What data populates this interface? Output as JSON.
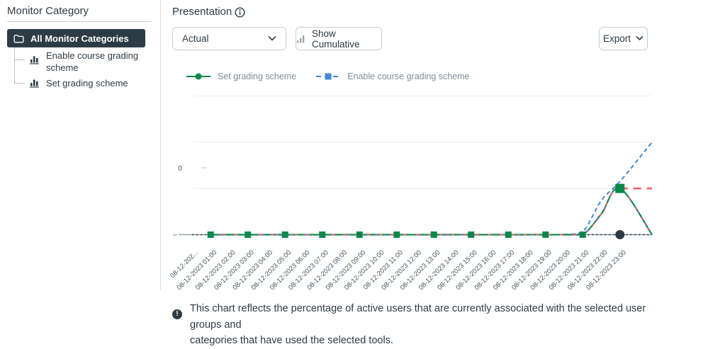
{
  "sidebar": {
    "title": "Monitor Category",
    "selected": {
      "label": "All Monitor Categories"
    },
    "items": [
      {
        "label": "Enable course grading scheme"
      },
      {
        "label": "Set grading scheme"
      }
    ]
  },
  "toolbar": {
    "title": "Presentation",
    "presentation_select": {
      "value": "Actual"
    },
    "cumulative_button": "Show Cumulative",
    "export_button": "Export"
  },
  "legend": [
    {
      "label": "Set grading scheme",
      "color": "#0E874B",
      "marker": "circle",
      "line": "solid"
    },
    {
      "label": "Enable course grading scheme",
      "color": "#4189D0",
      "marker": "square",
      "line": "dashed"
    }
  ],
  "colors": {
    "ink": "#2D3B45",
    "border": "#C7CDD1",
    "green": "#0E874B",
    "blue": "#4189D0",
    "red": "#F4605F",
    "magenta": "#A85CC0",
    "dark_dot": "#2B3A47",
    "grid": "#ECEDEE",
    "axis": "#98A2AA",
    "x_label_text": "#46535E",
    "legend_text": "#7E8D9B"
  },
  "chart_data": {
    "type": "line",
    "y_axis_label": "0",
    "ylim": [
      0,
      3.2
    ],
    "gridline_values": [
      1,
      2,
      3
    ],
    "x_labels": [
      "08-12-202...",
      "08-12-2023 01:00",
      "08-12-2023 02:00",
      "08-12-2023 03:00",
      "08-12-2023 04:00",
      "08-12-2023 05:00",
      "08-12-2023 06:00",
      "08-12-2023 07:00",
      "08-12-2023 08:00",
      "08-12-2023 09:00",
      "08-12-2023 10:00",
      "08-12-2023 11:00",
      "08-12-2023 12:00",
      "08-12-2023 13:00",
      "08-12-2023 14:00",
      "08-12-2023 15:00",
      "08-12-2023 16:00",
      "08-12-2023 17:00",
      "08-12-2023 18:00",
      "08-12-2023 19:00",
      "08-12-2023 20:00",
      "08-12-2023 21:00",
      "08-12-2023 22:00",
      "08-12-2023 23:00"
    ],
    "series": [
      {
        "id": "zero-baseline-dark",
        "name": "baseline zero line",
        "color": "#2B3A47",
        "width": 1.4,
        "dash": "2.5 3.5",
        "values": [
          0,
          0,
          0,
          0,
          0,
          0,
          0,
          0,
          0,
          0,
          0,
          0,
          0,
          0,
          0,
          0,
          0,
          0,
          0,
          0,
          0,
          0,
          0,
          0
        ],
        "edge_value": 0,
        "marker_shape": "circle",
        "marker_color": "#2B3A47",
        "markers": [
          {
            "index": 23,
            "size": 13
          }
        ]
      },
      {
        "id": "enable-course-grading-scheme",
        "name": "Enable course grading scheme",
        "color": "#4189D0",
        "width": 2,
        "dash": "6 4",
        "values": [
          null,
          null,
          null,
          null,
          null,
          null,
          null,
          null,
          null,
          null,
          null,
          null,
          null,
          null,
          null,
          null,
          null,
          null,
          null,
          null,
          0,
          0.06,
          0.74,
          1.15
        ],
        "edge_value": 2
      },
      {
        "id": "set-grading-scheme",
        "name": "Set grading scheme",
        "color": "#0E874B",
        "width": 2.2,
        "values": [
          null,
          0,
          0,
          0,
          0,
          0,
          0,
          0,
          0,
          0,
          0,
          0,
          0,
          0,
          0,
          0,
          0,
          0,
          0,
          0,
          0,
          0,
          0.45,
          1
        ],
        "edge_value": 0,
        "marker_shape": "square",
        "marker_color": "#0E874B",
        "markers": [
          {
            "index": 1,
            "size": 9
          },
          {
            "index": 3,
            "size": 9
          },
          {
            "index": 5,
            "size": 9
          },
          {
            "index": 7,
            "size": 9
          },
          {
            "index": 9,
            "size": 9
          },
          {
            "index": 11,
            "size": 9
          },
          {
            "index": 13,
            "size": 9
          },
          {
            "index": 15,
            "size": 9
          },
          {
            "index": 17,
            "size": 9
          },
          {
            "index": 19,
            "size": 9
          },
          {
            "index": 21,
            "size": 9
          },
          {
            "index": 23,
            "size": 13
          }
        ]
      },
      {
        "id": "set-grading-overlay-magenta",
        "name": "overlapping series (magenta dashed)",
        "color": "#A85CC0",
        "width": 1.7,
        "dash": "4 16",
        "dash_offset": 8,
        "values": [
          null,
          0,
          0,
          0,
          0,
          0,
          0,
          0,
          0,
          0,
          0,
          0,
          0,
          0,
          0,
          0,
          0,
          0,
          0,
          0,
          0,
          0,
          0.45,
          1
        ],
        "edge_value": 0
      },
      {
        "id": "set-grading-overlay-red",
        "name": "overlapping series (red dashed)",
        "color": "#F4605F",
        "width": 1.7,
        "dash": "4 13",
        "values": [
          null,
          0,
          0,
          0,
          0,
          0,
          0,
          0,
          0,
          0,
          0,
          0,
          0,
          0,
          0,
          0,
          0,
          0,
          0,
          0,
          0,
          0,
          0.45,
          1
        ],
        "edge_value": 0
      },
      {
        "id": "peak-plateau-red",
        "name": "cumulative plateau (red dashed)",
        "color": "#F4605F",
        "width": 2.6,
        "dash": "11 8",
        "values": [
          null,
          null,
          null,
          null,
          null,
          null,
          null,
          null,
          null,
          null,
          null,
          null,
          null,
          null,
          null,
          null,
          null,
          null,
          null,
          null,
          null,
          null,
          null,
          1
        ],
        "edge_value": 1
      }
    ]
  },
  "note": {
    "lines": [
      "This chart reflects the percentage of active users that are currently associated with the selected user groups and",
      "categories that have used the selected tools."
    ]
  }
}
